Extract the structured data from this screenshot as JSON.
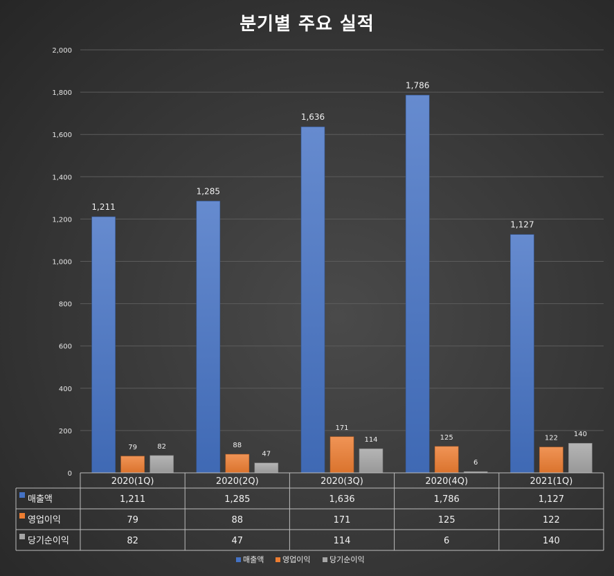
{
  "chart_data": {
    "type": "bar",
    "title": "분기별 주요 실적",
    "categories": [
      "2020(1Q)",
      "2020(2Q)",
      "2020(3Q)",
      "2020(4Q)",
      "2021(1Q)"
    ],
    "series": [
      {
        "name": "매출액",
        "color": "#4472c4",
        "values": [
          1211,
          1285,
          1636,
          1786,
          1127
        ],
        "labels": [
          "1,211",
          "1,285",
          "1,636",
          "1,786",
          "1,127"
        ]
      },
      {
        "name": "영업이익",
        "color": "#ed7d31",
        "values": [
          79,
          88,
          171,
          125,
          122
        ],
        "labels": [
          "79",
          "88",
          "171",
          "125",
          "122"
        ]
      },
      {
        "name": "당기순이익",
        "color": "#a5a5a5",
        "values": [
          82,
          47,
          114,
          6,
          140
        ],
        "labels": [
          "82",
          "47",
          "114",
          "6",
          "140"
        ]
      }
    ],
    "ylim": [
      0,
      2000
    ],
    "yticks": [
      "0",
      "200",
      "400",
      "600",
      "800",
      "1,000",
      "1,200",
      "1,400",
      "1,600",
      "1,800",
      "2,000"
    ],
    "grid": true,
    "legend": "bottom",
    "data_table": true
  }
}
